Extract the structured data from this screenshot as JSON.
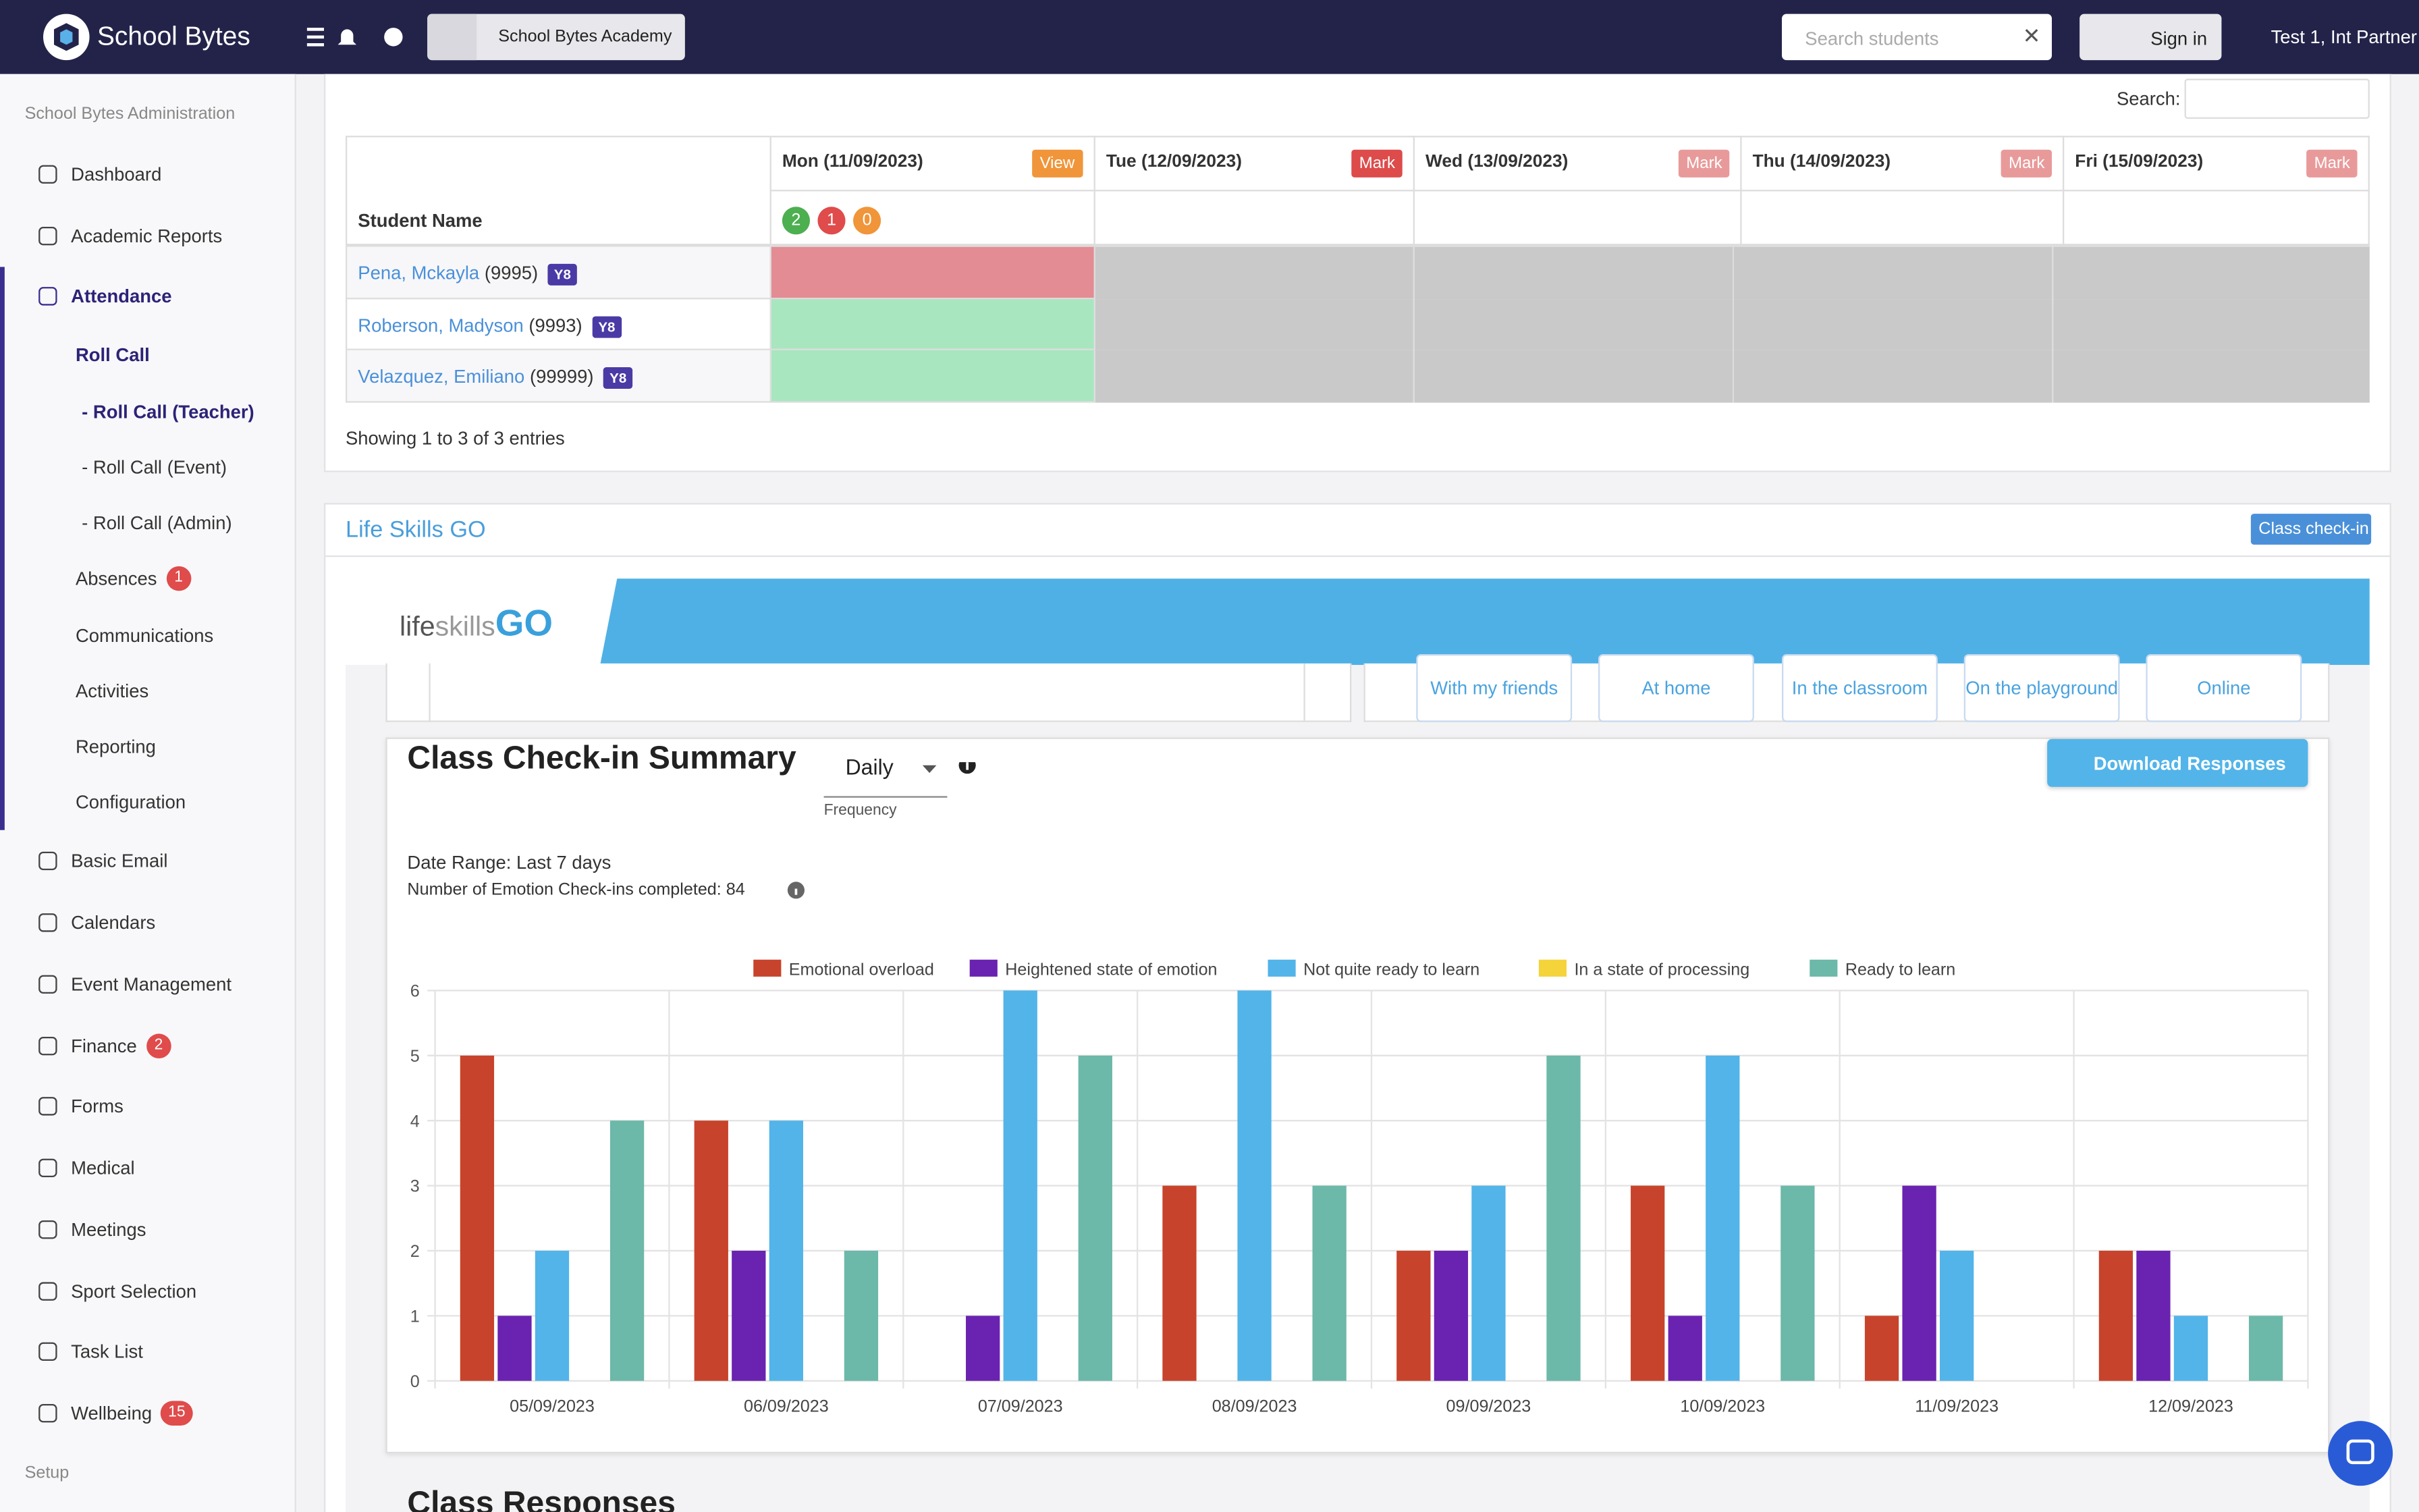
{
  "header": {
    "brand": "School Bytes",
    "school": "School Bytes Academy",
    "search_placeholder": "Search students",
    "sign_in": "Sign in",
    "user": "Test 1, Int Partner"
  },
  "sidebar": {
    "section": "School Bytes Administration",
    "items": [
      {
        "label": "Dashboard",
        "level": 0
      },
      {
        "label": "Academic Reports",
        "level": 0
      },
      {
        "label": "Attendance",
        "level": 0,
        "active": true
      },
      {
        "label": "Roll Call",
        "level": 1,
        "active": true
      },
      {
        "label": "- Roll Call (Teacher)",
        "level": 2,
        "active": true
      },
      {
        "label": "- Roll Call (Event)",
        "level": 2
      },
      {
        "label": "- Roll Call (Admin)",
        "level": 2
      },
      {
        "label": "Absences",
        "level": 1,
        "badge": 1
      },
      {
        "label": "Communications",
        "level": 1
      },
      {
        "label": "Activities",
        "level": 1
      },
      {
        "label": "Reporting",
        "level": 1
      },
      {
        "label": "Configuration",
        "level": 1
      },
      {
        "label": "Basic Email",
        "level": 0
      },
      {
        "label": "Calendars",
        "level": 0
      },
      {
        "label": "Event Management",
        "level": 0
      },
      {
        "label": "Finance",
        "level": 0,
        "badge": 2
      },
      {
        "label": "Forms",
        "level": 0
      },
      {
        "label": "Medical",
        "level": 0
      },
      {
        "label": "Meetings",
        "level": 0
      },
      {
        "label": "Sport Selection",
        "level": 0
      },
      {
        "label": "Task List",
        "level": 0
      },
      {
        "label": "Wellbeing",
        "level": 0,
        "badge": 15
      }
    ],
    "setup": "Setup"
  },
  "roll_call": {
    "search_label": "Search:",
    "student_col": "Student Name",
    "days": [
      {
        "label": "Mon (11/09/2023)",
        "action": "View",
        "color": "#f0953a"
      },
      {
        "label": "Tue (12/09/2023)",
        "action": "Mark",
        "color": "#dd4b4b"
      },
      {
        "label": "Wed (13/09/2023)",
        "action": "Mark",
        "color": "#e89a9a"
      },
      {
        "label": "Thu (14/09/2023)",
        "action": "Mark",
        "color": "#e89a9a"
      },
      {
        "label": "Fri (15/09/2023)",
        "action": "Mark",
        "color": "#e89a9a"
      }
    ],
    "counts": [
      {
        "value": 2,
        "color": "#4caf50"
      },
      {
        "value": 1,
        "color": "#e04b4b"
      },
      {
        "value": 0,
        "color": "#f0953a"
      }
    ],
    "students": [
      {
        "name": "Pena, Mckayla",
        "id": "(9995)",
        "year": "Y8",
        "color": "#e38c93"
      },
      {
        "name": "Roberson, Madyson",
        "id": "(9993)",
        "year": "Y8",
        "color": "#a8e6bf"
      },
      {
        "name": "Velazquez, Emiliano",
        "id": "(99999)",
        "year": "Y8",
        "color": "#a8e6bf"
      }
    ],
    "footer": "Showing 1 to 3 of 3 entries"
  },
  "lifeskills": {
    "title": "Life Skills GO",
    "button": "Class check-in",
    "logo": [
      "life",
      "skills",
      "GO"
    ],
    "places": [
      "With my friends",
      "At home",
      "In the classroom",
      "On the playground",
      "Online"
    ]
  },
  "summary": {
    "title": "Class Check-in Summary",
    "frequency": "Daily",
    "frequency_label": "Frequency",
    "download": "Download Responses",
    "date_range": "Date Range: Last 7 days",
    "count_text": "Number of Emotion Check-ins completed: 84"
  },
  "chart_data": {
    "type": "bar",
    "categories": [
      "05/09/2023",
      "06/09/2023",
      "07/09/2023",
      "08/09/2023",
      "09/09/2023",
      "10/09/2023",
      "11/09/2023",
      "12/09/2023"
    ],
    "series": [
      {
        "name": "Emotional overload",
        "color": "#c8432b",
        "values": [
          5,
          4,
          0,
          3,
          2,
          3,
          1,
          2
        ]
      },
      {
        "name": "Heightened state of emotion",
        "color": "#6a22b0",
        "values": [
          1,
          2,
          1,
          0,
          2,
          1,
          3,
          2
        ]
      },
      {
        "name": "Not quite ready to learn",
        "color": "#52b4e9",
        "values": [
          2,
          4,
          6,
          6,
          3,
          5,
          2,
          1
        ]
      },
      {
        "name": "In a state of processing",
        "color": "#f5d33a",
        "values": [
          0,
          0,
          0,
          0,
          0,
          0,
          0,
          0
        ]
      },
      {
        "name": "Ready to learn",
        "color": "#6cb8a9",
        "values": [
          4,
          2,
          5,
          3,
          5,
          3,
          0,
          1
        ]
      }
    ],
    "ylim": [
      0,
      6
    ],
    "yticks": [
      0,
      1,
      2,
      3,
      4,
      5,
      6
    ],
    "grid": true,
    "legend": "top"
  },
  "next_title": "Class Responses"
}
